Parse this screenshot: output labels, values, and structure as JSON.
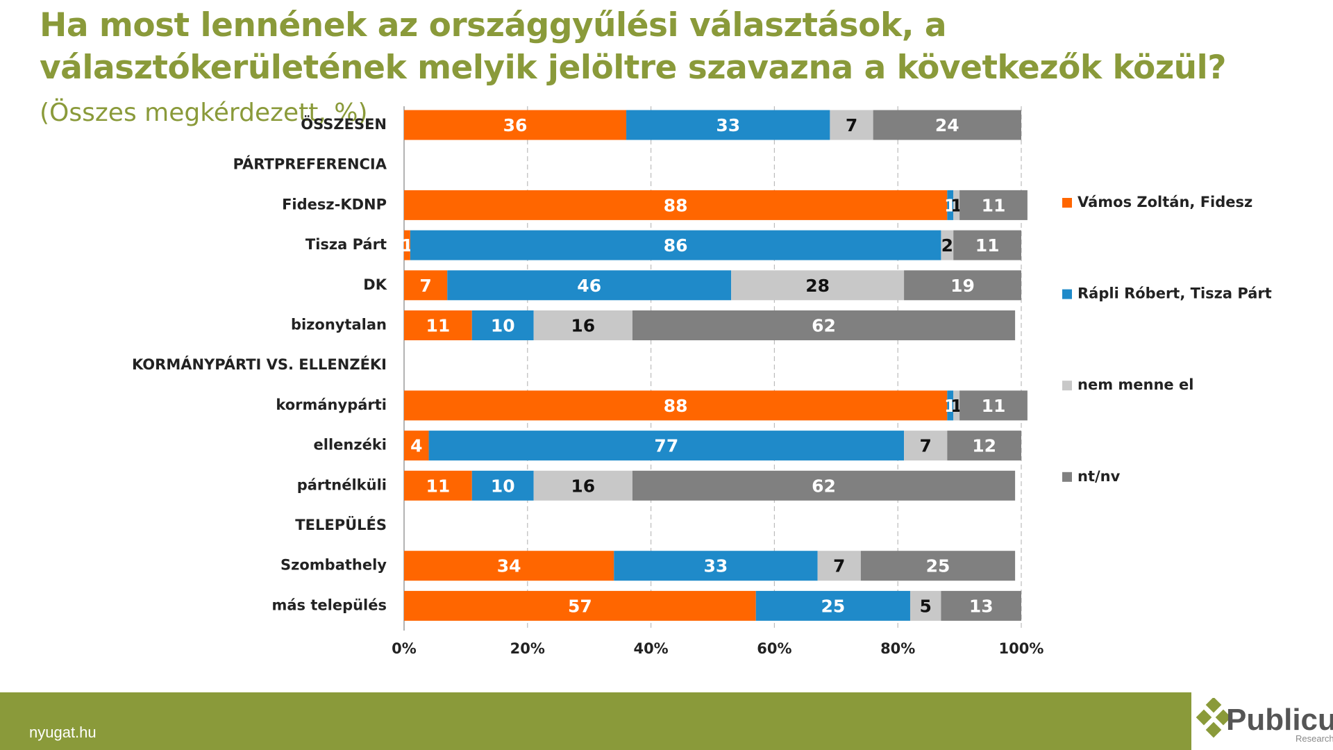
{
  "chart_data": {
    "type": "stacked-bar-horizontal",
    "title": "Ha most lennének az országgyűlési választások, a választókerületének melyik jelöltre szavazna a következők közül?",
    "subtitle": "(Összes megkérdezett, %)",
    "categories": [
      "ÖSSZESEN",
      "PÁRTPREFERENCIA",
      "Fidesz-KDNP",
      "Tisza Párt",
      "DK",
      "bizonytalan",
      "KORMÁNYPÁRTI VS. ELLENZÉKI",
      "kormánypárti",
      "ellenzéki",
      "pártnélküli",
      "TELEPÜLÉS",
      "Szombathely",
      "más település"
    ],
    "series": [
      {
        "name": "Vámos Zoltán, Fidesz",
        "color": "#ff6600",
        "values": [
          36,
          null,
          88,
          1,
          7,
          11,
          null,
          88,
          4,
          11,
          null,
          34,
          57
        ]
      },
      {
        "name": "Rápli Róbert, Tisza Párt",
        "color": "#1f8ac9",
        "values": [
          33,
          null,
          1,
          86,
          46,
          10,
          null,
          1,
          77,
          10,
          null,
          33,
          25
        ]
      },
      {
        "name": "nem menne el",
        "color": "#c8c8c8",
        "values": [
          7,
          null,
          1,
          2,
          28,
          16,
          null,
          1,
          7,
          16,
          null,
          7,
          5
        ]
      },
      {
        "name": "nt/nv",
        "color": "#808080",
        "values": [
          24,
          null,
          11,
          11,
          19,
          62,
          null,
          11,
          12,
          62,
          null,
          25,
          13
        ]
      }
    ],
    "xlim": [
      0,
      100
    ],
    "xticks": [
      {
        "value": 0,
        "label": "0%"
      },
      {
        "value": 20,
        "label": "20%"
      },
      {
        "value": 40,
        "label": "40%"
      },
      {
        "value": 60,
        "label": "60%"
      },
      {
        "value": 80,
        "label": "80%"
      },
      {
        "value": 100,
        "label": "100%"
      }
    ],
    "grid": true,
    "legend": "right"
  },
  "footer": {
    "source": "nyugat.hu",
    "brand": "Publicus",
    "brand_sub": "Research"
  }
}
